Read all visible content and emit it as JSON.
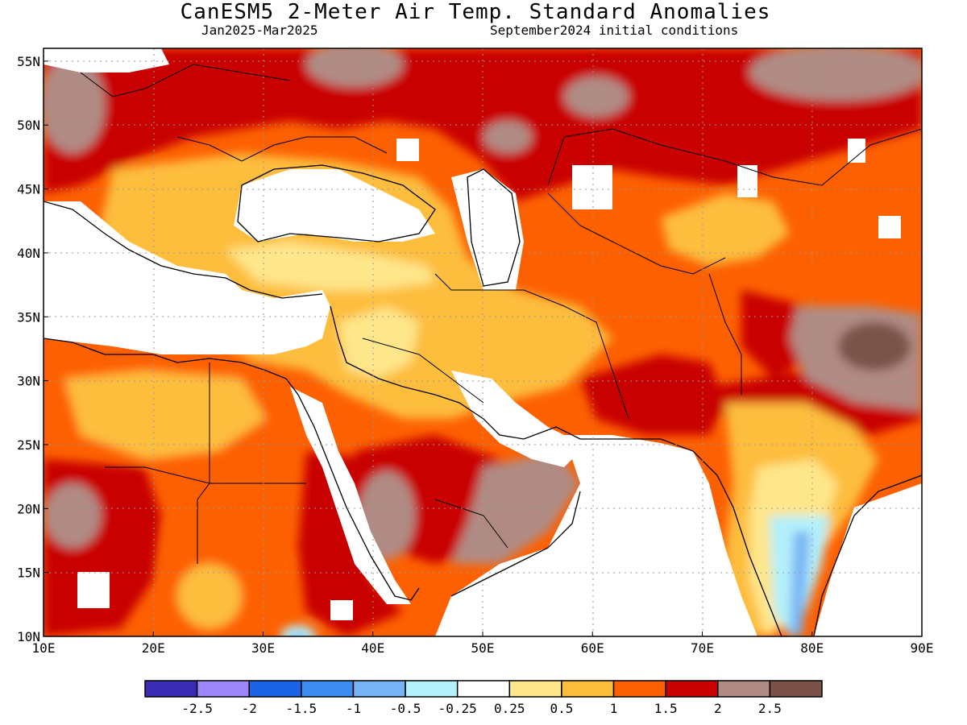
{
  "title": "CanESM5 2-Meter Air Temp. Standard Anomalies",
  "subtitle_left": "Jan2025-Mar2025",
  "subtitle_right": "September2024 initial conditions",
  "map": {
    "lon_range": [
      10,
      90
    ],
    "lat_range": [
      10,
      56
    ],
    "lon_ticks": [
      "10E",
      "20E",
      "30E",
      "40E",
      "50E",
      "60E",
      "70E",
      "80E",
      "90E"
    ],
    "lat_ticks": [
      "10N",
      "15N",
      "20N",
      "25N",
      "30N",
      "35N",
      "40N",
      "45N",
      "50N",
      "55N"
    ],
    "grid": "dotted"
  },
  "colorbar": {
    "colors": [
      "#3a2db4",
      "#9d87fa",
      "#1c64e6",
      "#3d8cf0",
      "#78b4f5",
      "#b4f0fa",
      "#ffffff",
      "#fee68a",
      "#fdbd3c",
      "#fd6000",
      "#c80000",
      "#b08b84",
      "#7a5248"
    ],
    "labels": [
      "-2.5",
      "-2",
      "-1.5",
      "-1",
      "-0.5",
      "-0.25",
      "0.25",
      "0.5",
      "1",
      "1.5",
      "2",
      "2.5"
    ]
  }
}
